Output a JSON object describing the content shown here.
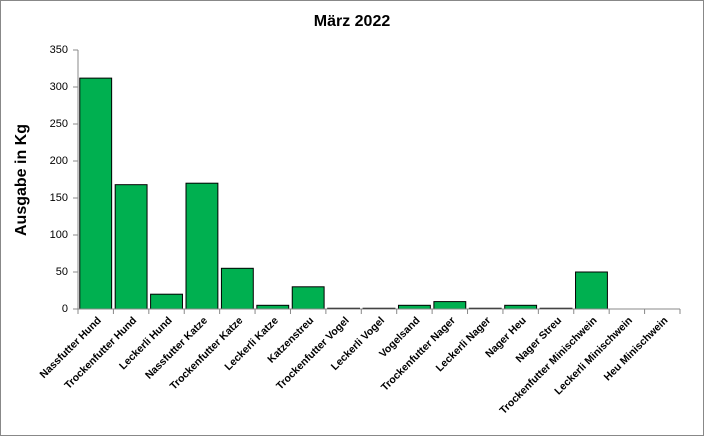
{
  "chart_data": {
    "type": "bar",
    "title": "März 2022",
    "y_label": "Ausgabe in Kg",
    "categories": [
      "Nassfutter Hund",
      "Trockenfutter Hund",
      "Leckerli Hund",
      "Nassfutter Katze",
      "Trockenfutter Katze",
      "Leckerli Katze",
      "Katzenstreu",
      "Trockenfutter Vogel",
      "Leckerli Vogel",
      "Vogelsand",
      "Trockenfutter Nager",
      "Leckerli Nager",
      "Nager Heu",
      "Nager Streu",
      "Trockenfutter Minischwein",
      "Leckerli Minischwein",
      "Heu Minischwein"
    ],
    "values": [
      312,
      168,
      20,
      170,
      55,
      5,
      30,
      1,
      1,
      5,
      10,
      1,
      5,
      1,
      50,
      0,
      0
    ],
    "color": "#00b050",
    "ylim": [
      0,
      350
    ],
    "yticks": [
      0,
      50,
      100,
      150,
      200,
      250,
      300,
      350
    ],
    "grid": false
  }
}
